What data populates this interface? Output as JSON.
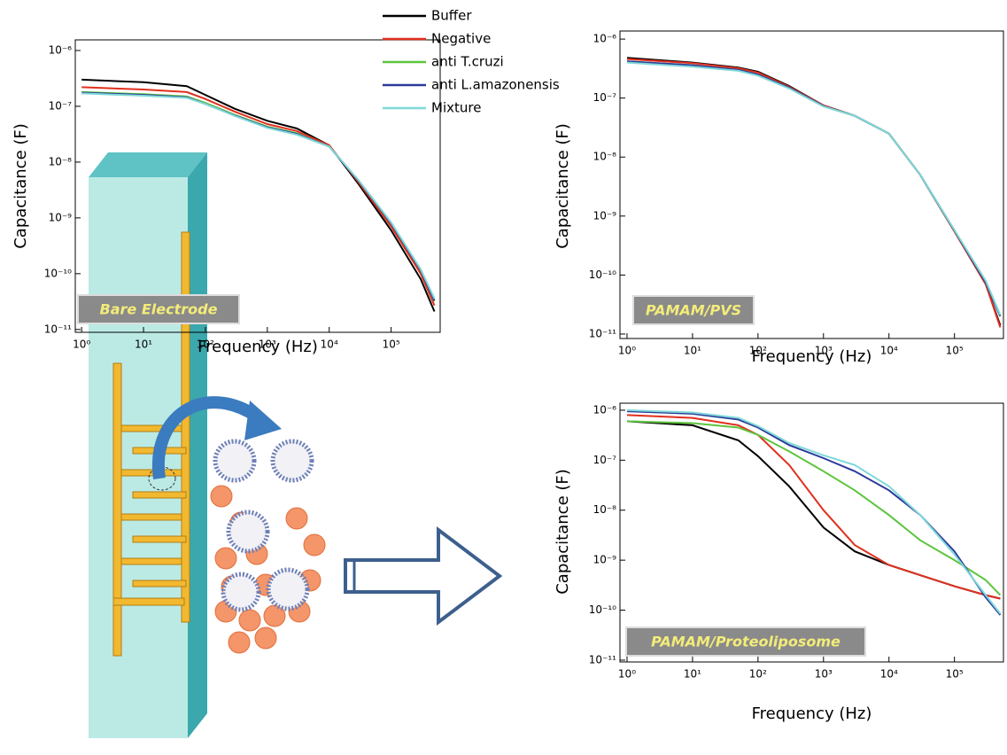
{
  "chart_data": [
    {
      "type": "line",
      "xscale": "log",
      "yscale": "log",
      "label": "Bare Electrode",
      "x_label": "Frequency (Hz)",
      "y_label": "Capacitance (F)",
      "xlim": [
        0.79,
        620000
      ],
      "ylim": [
        8.9e-12,
        1.55e-06
      ],
      "xticks": [
        {
          "value": 1,
          "label": "10⁰"
        },
        {
          "value": 10,
          "label": "10¹"
        },
        {
          "value": 100,
          "label": "10²"
        },
        {
          "value": 1000,
          "label": "10³"
        },
        {
          "value": 10000,
          "label": "10⁴"
        },
        {
          "value": 100000,
          "label": "10⁵"
        }
      ],
      "yticks": [
        {
          "value": 1e-11,
          "label": "10⁻¹¹"
        },
        {
          "value": 1e-10,
          "label": "10⁻¹⁰"
        },
        {
          "value": 1e-09,
          "label": "10⁻⁹"
        },
        {
          "value": 1e-08,
          "label": "10⁻⁸"
        },
        {
          "value": 1e-07,
          "label": "10⁻⁷"
        },
        {
          "value": 1e-06,
          "label": "10⁻⁶"
        }
      ],
      "x": [
        1,
        10,
        50,
        100,
        300,
        1000,
        3000,
        10000,
        30000,
        100000,
        300000,
        500000
      ],
      "series": [
        {
          "name": "Buffer",
          "color": "#000000",
          "values": [
            3e-07,
            2.7e-07,
            2.3e-07,
            1.6e-07,
            9e-08,
            5.5e-08,
            4e-08,
            2e-08,
            4e-09,
            6e-10,
            8e-11,
            2.1e-11
          ]
        },
        {
          "name": "Negative",
          "color": "#e0301e",
          "values": [
            2.2e-07,
            2e-07,
            1.8e-07,
            1.35e-07,
            8e-08,
            4.8e-08,
            3.6e-08,
            2e-08,
            4.3e-09,
            7e-10,
            1e-10,
            2.7e-11
          ]
        },
        {
          "name": "anti T.cruzi",
          "color": "#5cc43c",
          "values": [
            1.8e-07,
            1.65e-07,
            1.5e-07,
            1.15e-07,
            7e-08,
            4.3e-08,
            3.3e-08,
            1.9e-08,
            4.6e-09,
            8e-10,
            1.15e-10,
            3.2e-11
          ]
        },
        {
          "name": "anti L.amazonensis",
          "color": "#2b3a9a",
          "values": [
            1.75e-07,
            1.6e-07,
            1.45e-07,
            1.1e-07,
            6.8e-08,
            4.2e-08,
            3.2e-08,
            1.9e-08,
            4.6e-09,
            8e-10,
            1.15e-10,
            3.3e-11
          ]
        },
        {
          "name": "Mixture",
          "color": "#7fd8d8",
          "values": [
            1.7e-07,
            1.55e-07,
            1.42e-07,
            1.1e-07,
            6.7e-08,
            4.1e-08,
            3.1e-08,
            1.9e-08,
            4.7e-09,
            8.3e-10,
            1.2e-10,
            3.6e-11
          ]
        }
      ]
    },
    {
      "type": "line",
      "xscale": "log",
      "yscale": "log",
      "label": "PAMAM/PVS",
      "x_label": "Frequency (Hz)",
      "y_label": "Capacitance (F)",
      "xlim": [
        0.78,
        560000
      ],
      "ylim": [
        8.4e-12,
        1.37e-06
      ],
      "xticks": [
        {
          "value": 1,
          "label": "10⁰"
        },
        {
          "value": 10,
          "label": "10¹"
        },
        {
          "value": 100,
          "label": "10²"
        },
        {
          "value": 1000,
          "label": "10³"
        },
        {
          "value": 10000,
          "label": "10⁴"
        },
        {
          "value": 100000,
          "label": "10⁵"
        }
      ],
      "yticks": [
        {
          "value": 1e-11,
          "label": "10⁻¹¹"
        },
        {
          "value": 1e-10,
          "label": "10⁻¹⁰"
        },
        {
          "value": 1e-09,
          "label": "10⁻⁹"
        },
        {
          "value": 1e-08,
          "label": "10⁻⁸"
        },
        {
          "value": 1e-07,
          "label": "10⁻⁷"
        },
        {
          "value": 1e-06,
          "label": "10⁻⁶"
        }
      ],
      "x": [
        1,
        10,
        50,
        100,
        300,
        1000,
        3000,
        10000,
        30000,
        100000,
        300000,
        500000
      ],
      "series": [
        {
          "color": "#000000",
          "values": [
            4.8e-07,
            4e-07,
            3.3e-07,
            2.8e-07,
            1.6e-07,
            7.5e-08,
            5e-08,
            2.5e-08,
            5e-09,
            5.5e-10,
            7e-11,
            1.4e-11
          ]
        },
        {
          "color": "#e0301e",
          "values": [
            4.6e-07,
            3.9e-07,
            3.2e-07,
            2.7e-07,
            1.55e-07,
            7.5e-08,
            5e-08,
            2.5e-08,
            5e-09,
            5.5e-10,
            7e-11,
            1.3e-11
          ]
        },
        {
          "color": "#5cc43c",
          "values": [
            4.2e-07,
            3.6e-07,
            3e-07,
            2.5e-07,
            1.5e-07,
            7.3e-08,
            5e-08,
            2.5e-08,
            5e-09,
            5.7e-10,
            7.5e-11,
            2e-11
          ]
        },
        {
          "color": "#2b3a9a",
          "values": [
            4.2e-07,
            3.6e-07,
            3e-07,
            2.5e-07,
            1.5e-07,
            7.3e-08,
            5e-08,
            2.5e-08,
            5e-09,
            5.7e-10,
            7.5e-11,
            2e-11
          ]
        },
        {
          "color": "#7fd8d8",
          "values": [
            4e-07,
            3.4e-07,
            2.9e-07,
            2.4e-07,
            1.45e-07,
            7.2e-08,
            5e-08,
            2.5e-08,
            5e-09,
            5.8e-10,
            8e-11,
            2.1e-11
          ]
        }
      ]
    },
    {
      "type": "line",
      "xscale": "log",
      "yscale": "log",
      "label": "PAMAM/Proteoliposome",
      "x_label": "Frequency (Hz)",
      "y_label": "Capacitance (F)",
      "xlim": [
        0.78,
        560000
      ],
      "ylim": [
        9.2e-12,
        1.38e-06
      ],
      "xticks": [
        {
          "value": 1,
          "label": "10⁰"
        },
        {
          "value": 10,
          "label": "10¹"
        },
        {
          "value": 100,
          "label": "10²"
        },
        {
          "value": 1000,
          "label": "10³"
        },
        {
          "value": 10000,
          "label": "10⁴"
        },
        {
          "value": 100000,
          "label": "10⁵"
        }
      ],
      "yticks": [
        {
          "value": 1e-11,
          "label": "10⁻¹¹"
        },
        {
          "value": 1e-10,
          "label": "10⁻¹⁰"
        },
        {
          "value": 1e-09,
          "label": "10⁻⁹"
        },
        {
          "value": 1e-08,
          "label": "10⁻⁸"
        },
        {
          "value": 1e-07,
          "label": "10⁻⁷"
        },
        {
          "value": 1e-06,
          "label": "10⁻⁶"
        }
      ],
      "x": [
        1,
        10,
        50,
        100,
        300,
        1000,
        3000,
        10000,
        30000,
        100000,
        300000,
        500000
      ],
      "series": [
        {
          "color": "#000000",
          "values": [
            6e-07,
            5e-07,
            2.5e-07,
            1.2e-07,
            3e-08,
            4.5e-09,
            1.5e-09,
            8e-10,
            5e-10,
            3e-10,
            2e-10,
            1.7e-10
          ]
        },
        {
          "color": "#e0301e",
          "values": [
            8e-07,
            7e-07,
            5e-07,
            3.2e-07,
            8e-08,
            1e-08,
            2e-09,
            8e-10,
            5e-10,
            3e-10,
            2e-10,
            1.7e-10
          ]
        },
        {
          "color": "#5cc43c",
          "values": [
            6e-07,
            5.5e-07,
            4.5e-07,
            3.2e-07,
            1.5e-07,
            6e-08,
            2.5e-08,
            8e-09,
            2.5e-09,
            1e-09,
            4e-10,
            2e-10
          ]
        },
        {
          "color": "#2b3a9a",
          "values": [
            9.5e-07,
            8.5e-07,
            6.5e-07,
            4.5e-07,
            2e-07,
            1.1e-07,
            6e-08,
            2.5e-08,
            8e-09,
            1.5e-09,
            1.8e-10,
            8e-11
          ]
        },
        {
          "color": "#7fd8d8",
          "values": [
            1e-06,
            9e-07,
            7e-07,
            4.8e-07,
            2.2e-07,
            1.25e-07,
            8e-08,
            3e-08,
            8e-09,
            1.3e-09,
            2e-10,
            8.5e-11
          ]
        }
      ]
    }
  ]
}
